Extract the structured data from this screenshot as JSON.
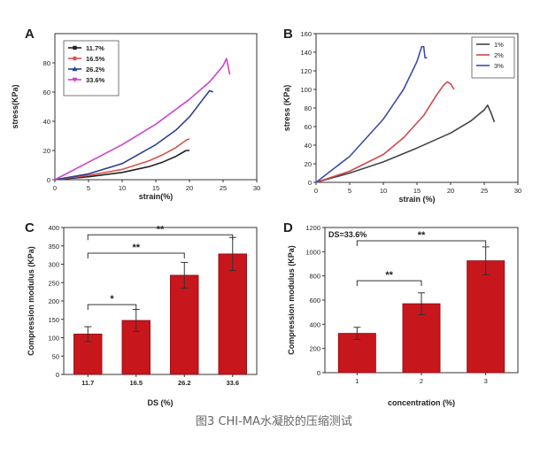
{
  "figure_caption": "图3 CHI-MA水凝胶的压缩测试",
  "colors": {
    "A_11.7%": "#222222",
    "A_16.5%": "#d9534f",
    "A_26.2%": "#2e3f8f",
    "A_33.6%": "#cc44cc",
    "B_1%": "#444444",
    "B_2%": "#d04a4a",
    "B_3%": "#3b4ea8",
    "bar": "#c8161d",
    "bar_edge": "#8a0a0e"
  },
  "chart_data": [
    {
      "id": "A",
      "type": "line",
      "panel_label": "A",
      "title": "",
      "xlabel": "strain(%)",
      "ylabel": "stress(KPa)",
      "xlim": [
        0,
        30
      ],
      "ylim": [
        0,
        100
      ],
      "xticks": [
        "0",
        "5",
        "10",
        "15",
        "20",
        "25",
        "30"
      ],
      "yticks": [
        "0",
        "20",
        "40",
        "60",
        "80"
      ],
      "legend_position": "top-left",
      "series": [
        {
          "name": "11.7%",
          "x": [
            0,
            5,
            10,
            14,
            16,
            18,
            19.5,
            20
          ],
          "y": [
            0,
            2,
            5,
            9,
            12,
            16,
            20,
            20
          ]
        },
        {
          "name": "16.5%",
          "x": [
            0,
            5,
            10,
            14,
            16,
            18,
            19.5,
            20
          ],
          "y": [
            0,
            3,
            7,
            13,
            17,
            22,
            27,
            28
          ]
        },
        {
          "name": "26.2%",
          "x": [
            0,
            5,
            10,
            15,
            18,
            20,
            22,
            23,
            23.5
          ],
          "y": [
            0,
            4,
            11,
            24,
            34,
            43,
            55,
            61,
            60
          ]
        },
        {
          "name": "33.6%",
          "x": [
            0,
            5,
            10,
            15,
            20,
            23,
            25,
            25.5,
            26
          ],
          "y": [
            0,
            12,
            24,
            38,
            55,
            67,
            78,
            83,
            72
          ]
        }
      ]
    },
    {
      "id": "B",
      "type": "line",
      "panel_label": "B",
      "title": "",
      "xlabel": "strain (%)",
      "ylabel": "stress (KPa)",
      "xlim": [
        0,
        30
      ],
      "ylim": [
        0,
        160
      ],
      "xticks": [
        "0",
        "5",
        "10",
        "15",
        "20",
        "25",
        "30"
      ],
      "yticks": [
        "0",
        "20",
        "40",
        "60",
        "80",
        "100",
        "120",
        "140",
        "160"
      ],
      "legend_position": "top-right",
      "series": [
        {
          "name": "1%",
          "x": [
            0,
            5,
            10,
            15,
            20,
            23,
            25,
            25.5,
            26,
            26.5
          ],
          "y": [
            0,
            10,
            22,
            37,
            53,
            66,
            78,
            83,
            75,
            65
          ]
        },
        {
          "name": "2%",
          "x": [
            0,
            5,
            10,
            13,
            16,
            18,
            19,
            19.5,
            20,
            20.5
          ],
          "y": [
            0,
            12,
            30,
            48,
            72,
            95,
            105,
            108,
            106,
            100
          ]
        },
        {
          "name": "3%",
          "x": [
            0,
            5,
            10,
            13,
            15,
            15.7,
            16,
            16.2,
            16.5
          ],
          "y": [
            0,
            28,
            68,
            100,
            130,
            146,
            146,
            134,
            134
          ]
        }
      ]
    },
    {
      "id": "C",
      "type": "bar",
      "panel_label": "C",
      "title": "",
      "xlabel": "DS (%)",
      "ylabel": "Compression modulus (KPa)",
      "ylim": [
        0,
        400
      ],
      "yticks": [
        "0",
        "50",
        "100",
        "150",
        "200",
        "250",
        "300",
        "350",
        "400"
      ],
      "categories": [
        "11.7",
        "16.5",
        "26.2",
        "33.6"
      ],
      "values": [
        110,
        147,
        270,
        328
      ],
      "errors": [
        20,
        30,
        35,
        45
      ],
      "significance": [
        {
          "from": 0,
          "to": 1,
          "label": "*",
          "level": 190
        },
        {
          "from": 0,
          "to": 2,
          "label": "**",
          "level": 330
        },
        {
          "from": 0,
          "to": 3,
          "label": "**",
          "level": 380
        }
      ]
    },
    {
      "id": "D",
      "type": "bar",
      "panel_label": "D",
      "title": "",
      "annotation": "DS=33.6%",
      "xlabel": "concentration (%)",
      "ylabel": "Compression modulus (KPa)",
      "ylim": [
        0,
        1200
      ],
      "yticks": [
        "0",
        "200",
        "400",
        "600",
        "800",
        "1000",
        "1200"
      ],
      "categories": [
        "1",
        "2",
        "3"
      ],
      "values": [
        325,
        570,
        925
      ],
      "errors": [
        50,
        90,
        115
      ],
      "significance": [
        {
          "from": 0,
          "to": 1,
          "label": "**",
          "level": 760
        },
        {
          "from": 0,
          "to": 2,
          "label": "**",
          "level": 1090
        }
      ]
    }
  ]
}
